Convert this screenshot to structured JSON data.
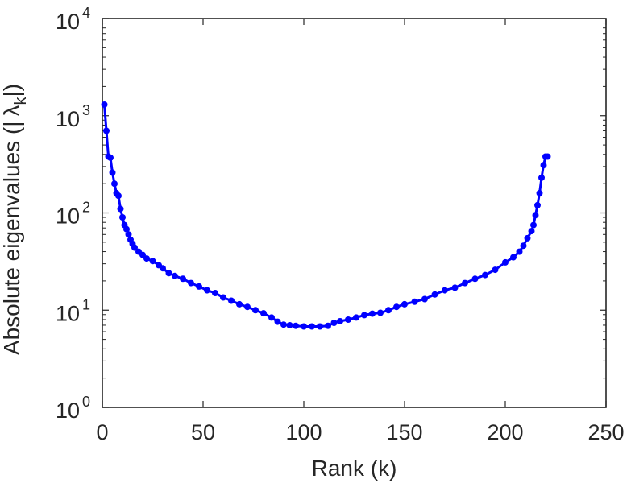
{
  "chart_data": {
    "type": "line",
    "title": "",
    "xlabel": "Rank (k)",
    "ylabel_parts": [
      "Absolute eigenvalues (|",
      "λ",
      "k",
      "|)"
    ],
    "x_scale": "linear",
    "y_scale": "log",
    "xlim": [
      0,
      250
    ],
    "ylim": [
      1,
      10000
    ],
    "x_ticks": [
      "0",
      "50",
      "100",
      "150",
      "200",
      "250"
    ],
    "y_ticks": [
      {
        "base": "10",
        "exp": "0"
      },
      {
        "base": "10",
        "exp": "1"
      },
      {
        "base": "10",
        "exp": "2"
      },
      {
        "base": "10",
        "exp": "3"
      },
      {
        "base": "10",
        "exp": "4"
      }
    ],
    "grid": false,
    "legend": "none",
    "series": [
      {
        "color": "#0000ff",
        "marker": "circle",
        "points": [
          [
            1,
            1300
          ],
          [
            2,
            700
          ],
          [
            3,
            380
          ],
          [
            4,
            370
          ],
          [
            5,
            260
          ],
          [
            6,
            200
          ],
          [
            7,
            160
          ],
          [
            8,
            150
          ],
          [
            9,
            110
          ],
          [
            10,
            90
          ],
          [
            11,
            75
          ],
          [
            12,
            68
          ],
          [
            13,
            60
          ],
          [
            14,
            53
          ],
          [
            15,
            48
          ],
          [
            16,
            44
          ],
          [
            18,
            40
          ],
          [
            20,
            37
          ],
          [
            22,
            34
          ],
          [
            25,
            32
          ],
          [
            28,
            29
          ],
          [
            30,
            27
          ],
          [
            33,
            24
          ],
          [
            36,
            22.5
          ],
          [
            40,
            21
          ],
          [
            44,
            19
          ],
          [
            48,
            17.5
          ],
          [
            52,
            16
          ],
          [
            56,
            15
          ],
          [
            60,
            13.5
          ],
          [
            64,
            12.5
          ],
          [
            68,
            11.5
          ],
          [
            72,
            10.8
          ],
          [
            76,
            10
          ],
          [
            80,
            9.3
          ],
          [
            84,
            8.4
          ],
          [
            87,
            7.6
          ],
          [
            90,
            7.1
          ],
          [
            93,
            7.0
          ],
          [
            96,
            6.9
          ],
          [
            100,
            6.8
          ],
          [
            104,
            6.8
          ],
          [
            108,
            6.8
          ],
          [
            112,
            6.9
          ],
          [
            115,
            7.4
          ],
          [
            118,
            7.7
          ],
          [
            122,
            8.0
          ],
          [
            126,
            8.4
          ],
          [
            130,
            8.9
          ],
          [
            134,
            9.2
          ],
          [
            138,
            9.4
          ],
          [
            142,
            10.0
          ],
          [
            146,
            10.8
          ],
          [
            150,
            11.5
          ],
          [
            155,
            12.2
          ],
          [
            160,
            13.0
          ],
          [
            165,
            14.5
          ],
          [
            170,
            16.0
          ],
          [
            175,
            17.0
          ],
          [
            180,
            19.0
          ],
          [
            185,
            21.0
          ],
          [
            190,
            23.0
          ],
          [
            195,
            26.0
          ],
          [
            200,
            31.0
          ],
          [
            204,
            35.0
          ],
          [
            207,
            40.0
          ],
          [
            209,
            46.0
          ],
          [
            211,
            55.0
          ],
          [
            213,
            65.0
          ],
          [
            214,
            75.0
          ],
          [
            215,
            95.0
          ],
          [
            216,
            120.0
          ],
          [
            217,
            160.0
          ],
          [
            218,
            230.0
          ],
          [
            219,
            310.0
          ],
          [
            220,
            380.0
          ],
          [
            221,
            380.0
          ]
        ]
      }
    ]
  }
}
